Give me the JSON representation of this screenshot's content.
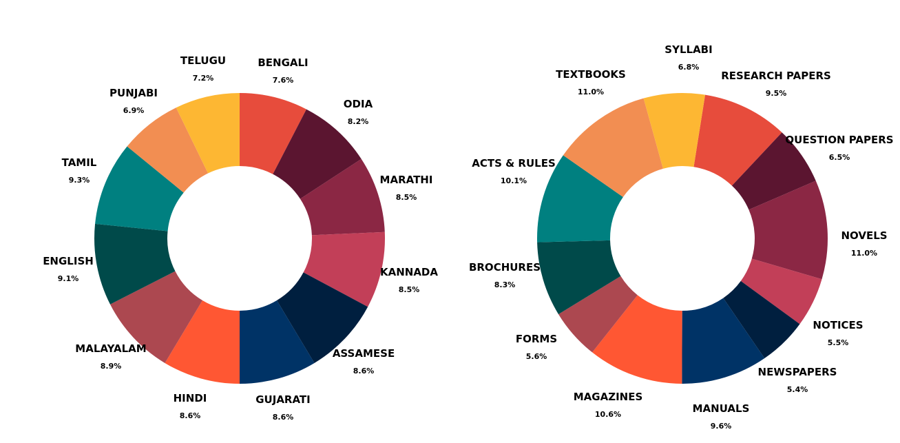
{
  "chart_data": [
    {
      "type": "pie",
      "variant": "donut",
      "title": "",
      "center": [
        348,
        346
      ],
      "outer_radius": 211,
      "inner_radius": 105,
      "start_angle_deg": 0,
      "direction": "clockwise",
      "categories": [
        "BENGALI",
        "ODIA",
        "MARATHI",
        "KANNADA",
        "ASSAMESE",
        "GUJARATI",
        "HINDI",
        "MALAYALAM",
        "ENGLISH",
        "TAMIL",
        "PUNJABI",
        "TELUGU"
      ],
      "values": [
        7.6,
        8.2,
        8.5,
        8.5,
        8.6,
        8.6,
        8.6,
        8.9,
        9.1,
        9.3,
        6.9,
        7.2
      ],
      "labels": [
        "7.6%",
        "8.2%",
        "8.5%",
        "8.5%",
        "8.6%",
        "8.6%",
        "8.6%",
        "8.9%",
        "9.1%",
        "9.3%",
        "6.9%",
        "7.2%"
      ],
      "colors": [
        "#E74C3C",
        "#5B1530",
        "#8B2744",
        "#C23F58",
        "#001F3F",
        "#003366",
        "#FF5733",
        "#AC4850",
        "#004A4A",
        "#008080",
        "#F28E52",
        "#FDB733"
      ],
      "label_positions": [
        [
          411,
          96
        ],
        [
          520,
          156
        ],
        [
          590,
          266
        ],
        [
          594,
          400
        ],
        [
          528,
          518
        ],
        [
          411,
          585
        ],
        [
          276,
          583
        ],
        [
          161,
          511
        ],
        [
          99,
          384
        ],
        [
          115,
          241
        ],
        [
          194,
          140
        ],
        [
          295,
          93
        ]
      ],
      "legend": null
    },
    {
      "type": "pie",
      "variant": "donut",
      "title": "",
      "center": [
        991,
        346
      ],
      "outer_radius": 211,
      "inner_radius": 105,
      "start_angle_deg": 9,
      "direction": "clockwise",
      "categories": [
        "RESEARCH PAPERS",
        "QUESTION PAPERS",
        "NOVELS",
        "NOTICES",
        "NEWSPAPERS",
        "MANUALS",
        "MAGAZINES",
        "FORMS",
        "BROCHURES",
        "ACTS & RULES",
        "TEXTBOOKS",
        "SYLLABI"
      ],
      "values": [
        9.5,
        6.5,
        11.0,
        5.5,
        5.4,
        9.6,
        10.6,
        5.6,
        8.3,
        10.1,
        11.0,
        6.8
      ],
      "labels": [
        "9.5%",
        "6.5%",
        "11.0%",
        "5.5%",
        "5.4%",
        "9.6%",
        "10.6%",
        "5.6%",
        "8.3%",
        "10.1%",
        "11.0%",
        "6.8%"
      ],
      "colors": [
        "#E74C3C",
        "#5B1530",
        "#8B2744",
        "#C23F58",
        "#001F3F",
        "#003366",
        "#FF5733",
        "#AC4850",
        "#004A4A",
        "#008080",
        "#F28E52",
        "#FDB733"
      ],
      "label_positions": [
        [
          1127,
          115
        ],
        [
          1219,
          208
        ],
        [
          1255,
          347
        ],
        [
          1217,
          477
        ],
        [
          1158,
          545
        ],
        [
          1047,
          598
        ],
        [
          883,
          581
        ],
        [
          779,
          497
        ],
        [
          733,
          393
        ],
        [
          746,
          242
        ],
        [
          858,
          113
        ],
        [
          1000,
          77
        ]
      ],
      "legend": null
    }
  ]
}
